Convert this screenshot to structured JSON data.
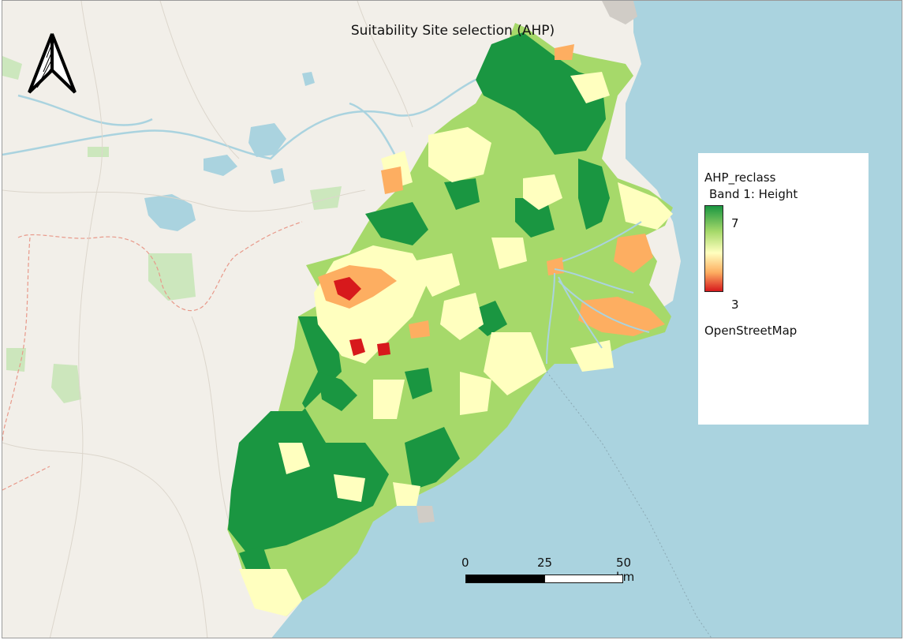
{
  "title": "Suitability Site selection (AHP)",
  "colors": {
    "sea": "#aad3df",
    "land": "#f2efe9",
    "water": "#aad3df",
    "boundary": "#e8998a",
    "road": "#ffffff",
    "park": "#c8e6b8",
    "suit_high": "#1a9641",
    "suit_mid_high": "#a6d96a",
    "suit_mid": "#ffffbf",
    "suit_mid_low": "#fdae61",
    "suit_low": "#d7191c"
  },
  "legend": {
    "layer_name": "AHP_reclass",
    "band_label": "Band 1: Height",
    "max_label": "7",
    "min_label": "3",
    "basemap_label": "OpenStreetMap"
  },
  "scalebar": {
    "labels": [
      "0",
      "25",
      "50 km"
    ]
  },
  "north_arrow": {
    "icon": "north-arrow-icon"
  }
}
